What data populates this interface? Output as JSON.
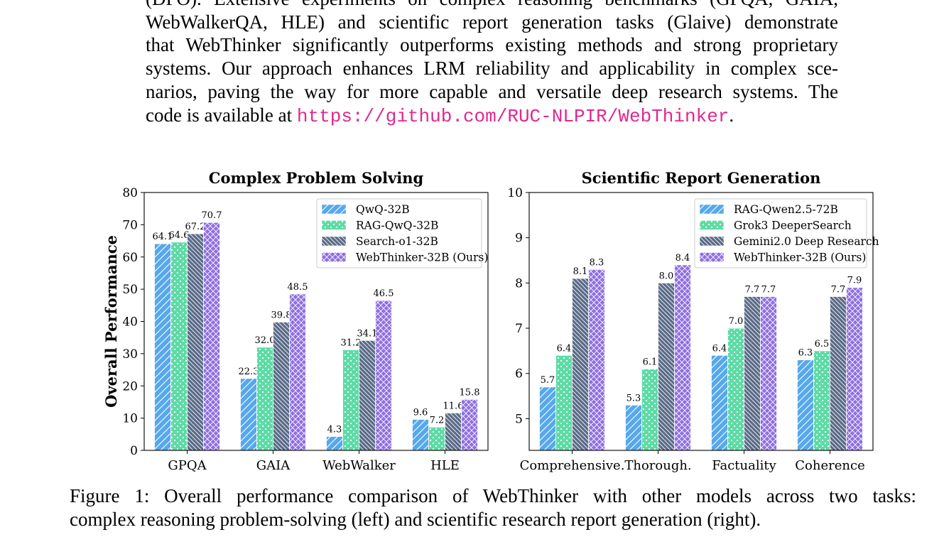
{
  "abstract": {
    "lines": [
      "(DPO). Extensive experiments on complex reasoning benchmarks (GPQA, GAIA,",
      "WebWalkerQA, HLE) and scientific report generation tasks (Glaive) demonstrate",
      "that WebThinker significantly outperforms existing methods and strong proprietary",
      "systems. Our approach enhances LRM reliability and applicability in complex sce-",
      "narios, paving the way for more capable and versatile deep research systems. The"
    ],
    "last_line_prefix": "code is available at ",
    "url": "https://github.com/RUC-NLPIR/WebThinker",
    "last_line_suffix": "."
  },
  "chart_data": [
    {
      "type": "bar",
      "title": "Complex Problem Solving",
      "xlabel": "",
      "ylabel": "Overall Performance",
      "ylim": [
        0,
        80
      ],
      "yticks": [
        0,
        10,
        20,
        30,
        40,
        50,
        60,
        70,
        80
      ],
      "categories": [
        "GPQA",
        "GAIA",
        "WebWalker",
        "HLE"
      ],
      "legend_position": "top-right",
      "series": [
        {
          "name": "QwQ-32B",
          "values": [
            64.1,
            22.3,
            4.3,
            9.6
          ],
          "color": "#56a8ec",
          "pattern": "diag"
        },
        {
          "name": "RAG-QwQ-32B",
          "values": [
            64.6,
            32.0,
            31.2,
            7.2
          ],
          "color": "#5ddba5",
          "pattern": "dots"
        },
        {
          "name": "Search-o1-32B",
          "values": [
            67.2,
            39.8,
            34.1,
            11.6
          ],
          "color": "#5a6b87",
          "pattern": "back"
        },
        {
          "name": "WebThinker-32B (Ours)",
          "values": [
            70.7,
            48.5,
            46.5,
            15.8
          ],
          "color": "#8f6fdf",
          "pattern": "cross"
        }
      ]
    },
    {
      "type": "bar",
      "title": "Scientific Report Generation",
      "xlabel": "",
      "ylabel": "",
      "ylim": [
        4.3,
        10
      ],
      "yticks": [
        5,
        6,
        7,
        8,
        9,
        10
      ],
      "categories": [
        "Comprehensive.",
        "Thorough.",
        "Factuality",
        "Coherence"
      ],
      "legend_position": "top-right",
      "series": [
        {
          "name": "RAG-Qwen2.5-72B",
          "values": [
            5.7,
            5.3,
            6.4,
            6.3
          ],
          "color": "#56a8ec",
          "pattern": "diag"
        },
        {
          "name": "Grok3 DeeperSearch",
          "values": [
            6.4,
            6.1,
            7.0,
            6.5
          ],
          "color": "#5ddba5",
          "pattern": "dots"
        },
        {
          "name": "Gemini2.0 Deep Research",
          "values": [
            8.1,
            8.0,
            7.7,
            7.7
          ],
          "color": "#5a6b87",
          "pattern": "back"
        },
        {
          "name": "WebThinker-32B (Ours)",
          "values": [
            8.3,
            8.4,
            7.7,
            7.9
          ],
          "color": "#8f6fdf",
          "pattern": "cross"
        }
      ]
    }
  ],
  "caption": {
    "lines": [
      "Figure 1:  Overall performance comparison of WebThinker with other models across two tasks:",
      "complex reasoning problem-solving (left) and scientific research report generation (right)."
    ]
  }
}
